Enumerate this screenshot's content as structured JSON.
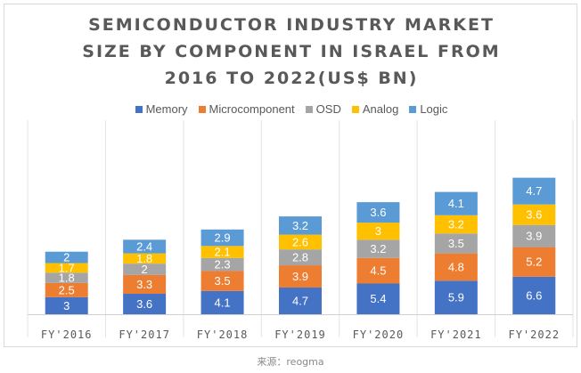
{
  "chart_data": {
    "type": "bar",
    "stacked": true,
    "title_lines": [
      "SEMICONDUCTOR INDUSTRY MARKET",
      "SIZE BY COMPONENT IN ISRAEL FROM",
      "2016 TO 2022(US$ BN)"
    ],
    "categories": [
      "FY'2016",
      "FY'2017",
      "FY'2018",
      "FY'2019",
      "FY'2020",
      "FY'2021",
      "FY'2022"
    ],
    "series": [
      {
        "name": "Memory",
        "color": "#4472c4",
        "values": [
          3,
          3.6,
          4.1,
          4.7,
          5.4,
          5.9,
          6.6
        ]
      },
      {
        "name": "Microcomponent",
        "color": "#ed7d31",
        "values": [
          2.5,
          3.3,
          3.5,
          3.9,
          4.5,
          4.8,
          5.2
        ]
      },
      {
        "name": "OSD",
        "color": "#a5a5a5",
        "values": [
          1.8,
          2,
          2.3,
          2.8,
          3.2,
          3.5,
          3.9
        ]
      },
      {
        "name": "Analog",
        "color": "#ffc000",
        "values": [
          1.7,
          1.8,
          2.1,
          2.6,
          3,
          3.2,
          3.6
        ]
      },
      {
        "name": "Logic",
        "color": "#5b9bd5",
        "values": [
          2,
          2.4,
          2.9,
          3.2,
          3.6,
          4.1,
          4.7
        ]
      }
    ],
    "legend_position": "top",
    "grid": true,
    "ylim": [
      0,
      25
    ]
  },
  "source_text": "来源：reogma"
}
